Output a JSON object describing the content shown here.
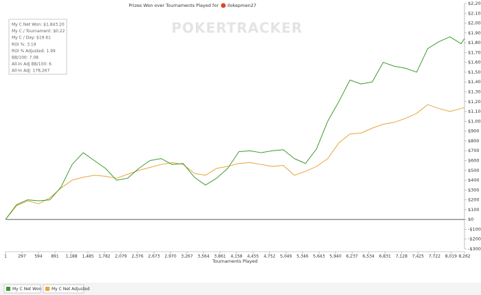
{
  "chart_data": {
    "type": "line",
    "title": "Prizes Won over Tournaments Played for",
    "player": "ilokepmen27",
    "watermark": "POKERTRACKER",
    "x_label": "Tournaments Played",
    "stats": [
      "My C Net Won: $1,843.20",
      "My C / Tournament: $0.22",
      "My C / Day: $19.61",
      "ROI %: 3.19",
      "ROI % Adjusted: 1.99",
      "BB/100: 7.08",
      "All-In Adj BB/100: 6",
      "All-In Adj: 178,267"
    ],
    "x": [
      1,
      200,
      400,
      600,
      800,
      1000,
      1200,
      1400,
      1600,
      1800,
      2000,
      2200,
      2400,
      2600,
      2800,
      3000,
      3200,
      3400,
      3600,
      3800,
      4000,
      4200,
      4400,
      4600,
      4800,
      5000,
      5200,
      5400,
      5600,
      5800,
      6000,
      6200,
      6400,
      6600,
      6800,
      7000,
      7200,
      7400,
      7600,
      7800,
      8000,
      8200,
      8262
    ],
    "series": [
      {
        "name": "My C Net Won",
        "color": "#3a9a2a",
        "values": [
          0,
          150,
          200,
          190,
          200,
          330,
          560,
          680,
          600,
          520,
          400,
          420,
          520,
          600,
          620,
          560,
          570,
          430,
          350,
          420,
          520,
          690,
          700,
          680,
          700,
          710,
          620,
          570,
          720,
          1000,
          1200,
          1420,
          1380,
          1400,
          1600,
          1560,
          1540,
          1500,
          1740,
          1810,
          1860,
          1790,
          1843
        ]
      },
      {
        "name": "My C Net Adjusted",
        "color": "#e8a33a",
        "values": [
          0,
          140,
          190,
          160,
          220,
          320,
          400,
          430,
          450,
          440,
          420,
          460,
          500,
          530,
          560,
          580,
          560,
          470,
          450,
          520,
          540,
          570,
          580,
          560,
          540,
          550,
          450,
          490,
          540,
          620,
          780,
          870,
          880,
          930,
          970,
          990,
          1030,
          1080,
          1170,
          1130,
          1100,
          1130,
          1140
        ]
      }
    ],
    "xlim": [
      1,
      8262
    ],
    "xticks": [
      1,
      297,
      594,
      891,
      {
        "value": 1188,
        "label": "1,188"
      },
      {
        "value": 1485,
        "label": "1,485"
      },
      {
        "value": 1782,
        "label": "1,782"
      },
      {
        "value": 2079,
        "label": "2,079"
      },
      {
        "value": 2376,
        "label": "2,376"
      },
      {
        "value": 2673,
        "label": "2,673"
      },
      {
        "value": 2970,
        "label": "2,970"
      },
      {
        "value": 3267,
        "label": "3,267"
      },
      {
        "value": 3564,
        "label": "3,564"
      },
      {
        "value": 3861,
        "label": "3,861"
      },
      {
        "value": 4158,
        "label": "4,158"
      },
      {
        "value": 4455,
        "label": "4,455"
      },
      {
        "value": 4752,
        "label": "4,752"
      },
      {
        "value": 5049,
        "label": "5,049"
      },
      {
        "value": 5346,
        "label": "5,346"
      },
      {
        "value": 5643,
        "label": "5,643"
      },
      {
        "value": 5940,
        "label": "5,940"
      },
      {
        "value": 6237,
        "label": "6,237"
      },
      {
        "value": 6534,
        "label": "6,534"
      },
      {
        "value": 6831,
        "label": "6,831"
      },
      {
        "value": 7128,
        "label": "7,128"
      },
      {
        "value": 7425,
        "label": "7,425"
      },
      {
        "value": 7722,
        "label": "7,722"
      },
      {
        "value": 8019,
        "label": "8,019"
      },
      {
        "value": 8262,
        "label": "8,262"
      }
    ],
    "ylim": [
      -300,
      2200
    ],
    "yticks": [
      {
        "value": -300,
        "label": "-$300"
      },
      {
        "value": -200,
        "label": "-$200"
      },
      {
        "value": -100,
        "label": "-$100"
      },
      {
        "value": 0,
        "label": "$0"
      },
      {
        "value": 100,
        "label": "$100"
      },
      {
        "value": 200,
        "label": "$200"
      },
      {
        "value": 300,
        "label": "$300"
      },
      {
        "value": 400,
        "label": "$400"
      },
      {
        "value": 500,
        "label": "$500"
      },
      {
        "value": 600,
        "label": "$600"
      },
      {
        "value": 700,
        "label": "$700"
      },
      {
        "value": 800,
        "label": "$800"
      },
      {
        "value": 900,
        "label": "$900"
      },
      {
        "value": 1000,
        "label": "$1,000"
      },
      {
        "value": 1100,
        "label": "$1,100"
      },
      {
        "value": 1200,
        "label": "$1,200"
      },
      {
        "value": 1300,
        "label": "$1,300"
      },
      {
        "value": 1400,
        "label": "$1,400"
      },
      {
        "value": 1500,
        "label": "$1,500"
      },
      {
        "value": 1600,
        "label": "$1,600"
      },
      {
        "value": 1700,
        "label": "$1,700"
      },
      {
        "value": 1800,
        "label": "$1,800"
      },
      {
        "value": 1900,
        "label": "$1,900"
      },
      {
        "value": 2000,
        "label": "$2,000"
      },
      {
        "value": 2100,
        "label": "$2,100"
      },
      {
        "value": 2200,
        "label": "$2,200"
      }
    ]
  }
}
